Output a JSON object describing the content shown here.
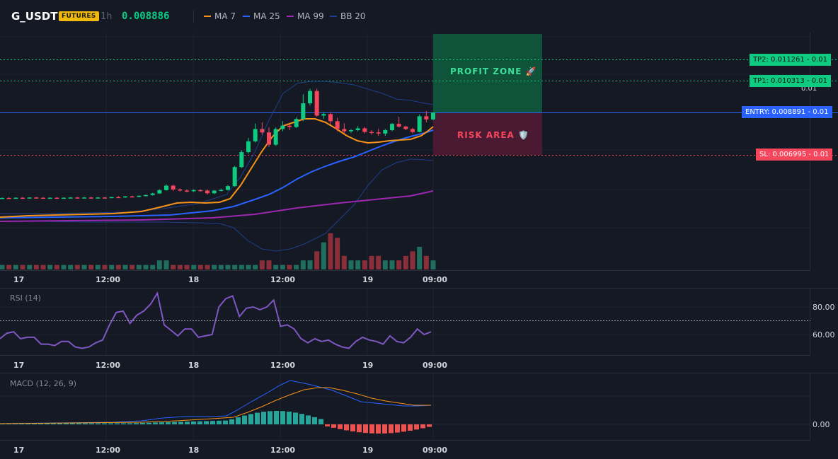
{
  "header": {
    "symbol": "G_USDT",
    "badge": "FUTURES",
    "timeframe": "1h",
    "price": "0.008886",
    "legend": [
      {
        "label": "MA 7",
        "color": "#f7931a"
      },
      {
        "label": "MA 25",
        "color": "#2962ff"
      },
      {
        "label": "MA 99",
        "color": "#9c27b0"
      },
      {
        "label": "BB 20",
        "color": "#1e3f8a"
      }
    ]
  },
  "levels": {
    "tp2": {
      "label": "TP2: 0.011261",
      "value": "0.01",
      "color": "#0ecb81"
    },
    "tp1": {
      "label": "TP1: 0.010313",
      "value": "0.01",
      "color": "#0ecb81"
    },
    "entry": {
      "label": "ENTRY: 0.008891",
      "value": "0.01",
      "color": "#2962ff"
    },
    "sl": {
      "label": "SL: 0.006995",
      "value": "0.01",
      "color": "#f6465d"
    },
    "behind_tp1": "0.01"
  },
  "zones": {
    "profit": "PROFIT ZONE 🚀",
    "risk": "RISK AREA 🛡️"
  },
  "time_axis": [
    "17",
    "12:00",
    "18",
    "12:00",
    "19",
    "09:00"
  ],
  "rsi": {
    "title": "RSI (14)",
    "ticks": [
      "80.00",
      "60.00"
    ],
    "values": [
      57,
      61,
      62,
      57,
      58,
      58,
      53,
      53,
      52,
      55,
      55,
      51,
      50,
      51,
      54,
      56,
      67,
      76,
      77,
      68,
      74,
      77,
      82,
      90,
      67,
      63,
      59,
      64,
      64,
      58,
      59,
      60,
      80,
      86,
      88,
      73,
      79,
      80,
      78,
      80,
      85,
      66,
      67,
      64,
      57,
      54,
      57,
      55,
      56,
      53,
      51,
      50,
      55,
      58,
      56,
      55,
      53,
      59,
      55,
      54,
      58,
      64,
      60,
      62
    ]
  },
  "macd": {
    "title": "MACD (12, 26, 9)",
    "ticks": [
      "0.00"
    ]
  },
  "colors": {
    "background": "#151924",
    "up": "#0ecb81",
    "down": "#f6465d",
    "vol_up": "#1f6e5e",
    "vol_down": "#8a2f3a"
  },
  "chart_data": {
    "type": "candlestick",
    "price_scale_ticks": [
      "0.011261",
      "0.010313",
      "0.008891",
      "0.006995"
    ],
    "candles": [
      [
        0.00505,
        0.00509,
        0.00503,
        0.00507
      ],
      [
        0.00507,
        0.00511,
        0.00504,
        0.00506
      ],
      [
        0.00506,
        0.0051,
        0.00503,
        0.00508
      ],
      [
        0.00508,
        0.00512,
        0.00505,
        0.00507
      ],
      [
        0.00507,
        0.0051,
        0.00504,
        0.00509
      ],
      [
        0.00509,
        0.00512,
        0.00506,
        0.00508
      ],
      [
        0.00508,
        0.00511,
        0.00505,
        0.00507
      ],
      [
        0.00507,
        0.0051,
        0.00504,
        0.00508
      ],
      [
        0.00508,
        0.00511,
        0.00505,
        0.00507
      ],
      [
        0.00507,
        0.0051,
        0.00504,
        0.00508
      ],
      [
        0.00508,
        0.00511,
        0.00506,
        0.00509
      ],
      [
        0.00509,
        0.00512,
        0.00506,
        0.00508
      ],
      [
        0.00508,
        0.00511,
        0.00505,
        0.00509
      ],
      [
        0.00509,
        0.00512,
        0.00506,
        0.00508
      ],
      [
        0.00508,
        0.00511,
        0.00505,
        0.00509
      ],
      [
        0.00509,
        0.00512,
        0.00506,
        0.00508
      ],
      [
        0.00508,
        0.00512,
        0.00506,
        0.00511
      ],
      [
        0.00511,
        0.00515,
        0.00508,
        0.0051
      ],
      [
        0.0051,
        0.00516,
        0.00508,
        0.00514
      ],
      [
        0.00514,
        0.00518,
        0.0051,
        0.00512
      ],
      [
        0.00512,
        0.00518,
        0.0051,
        0.00517
      ],
      [
        0.00517,
        0.00522,
        0.00514,
        0.0052
      ],
      [
        0.0052,
        0.0053,
        0.00518,
        0.00527
      ],
      [
        0.00527,
        0.00545,
        0.00525,
        0.00542
      ],
      [
        0.00542,
        0.00568,
        0.0054,
        0.00562
      ],
      [
        0.00562,
        0.00566,
        0.00538,
        0.00545
      ],
      [
        0.00545,
        0.0055,
        0.00536,
        0.0054
      ],
      [
        0.0054,
        0.00546,
        0.00532,
        0.00538
      ],
      [
        0.00538,
        0.00546,
        0.00534,
        0.00542
      ],
      [
        0.00542,
        0.00546,
        0.00536,
        0.0054
      ],
      [
        0.0054,
        0.00545,
        0.00522,
        0.00528
      ],
      [
        0.00528,
        0.00542,
        0.00524,
        0.0054
      ],
      [
        0.0054,
        0.00548,
        0.00536,
        0.00543
      ],
      [
        0.00543,
        0.00565,
        0.0054,
        0.0056
      ],
      [
        0.0056,
        0.0065,
        0.00556,
        0.00645
      ],
      [
        0.00645,
        0.0072,
        0.0064,
        0.00712
      ],
      [
        0.00712,
        0.00775,
        0.00705,
        0.0076
      ],
      [
        0.0076,
        0.0084,
        0.00755,
        0.00815
      ],
      [
        0.00815,
        0.00845,
        0.0079,
        0.008
      ],
      [
        0.008,
        0.00822,
        0.00735,
        0.00745
      ],
      [
        0.00745,
        0.00822,
        0.0074,
        0.00815
      ],
      [
        0.00815,
        0.0085,
        0.00805,
        0.0083
      ],
      [
        0.0083,
        0.00835,
        0.0081,
        0.00824
      ],
      [
        0.00824,
        0.00868,
        0.0082,
        0.0086
      ],
      [
        0.0086,
        0.0097,
        0.0085,
        0.0093
      ],
      [
        0.0093,
        0.00995,
        0.0092,
        0.00985
      ],
      [
        0.00985,
        0.00995,
        0.0087,
        0.00875
      ],
      [
        0.00875,
        0.0089,
        0.0086,
        0.00882
      ],
      [
        0.00882,
        0.0089,
        0.00835,
        0.0085
      ],
      [
        0.0085,
        0.00865,
        0.00805,
        0.00815
      ],
      [
        0.00815,
        0.0084,
        0.00795,
        0.00805
      ],
      [
        0.00805,
        0.00815,
        0.00798,
        0.0081
      ],
      [
        0.0081,
        0.00828,
        0.00805,
        0.00818
      ],
      [
        0.00818,
        0.00825,
        0.00795,
        0.00802
      ],
      [
        0.00802,
        0.0081,
        0.0079,
        0.008
      ],
      [
        0.008,
        0.00815,
        0.00785,
        0.00795
      ],
      [
        0.00795,
        0.00815,
        0.00785,
        0.0081
      ],
      [
        0.0081,
        0.00842,
        0.00805,
        0.00838
      ],
      [
        0.00838,
        0.0087,
        0.00822,
        0.00826
      ],
      [
        0.00826,
        0.0083,
        0.0081,
        0.00815
      ],
      [
        0.00815,
        0.0082,
        0.00795,
        0.00802
      ],
      [
        0.00802,
        0.0088,
        0.008,
        0.00872
      ],
      [
        0.00872,
        0.00895,
        0.00845,
        0.00858
      ],
      [
        0.00858,
        0.0089,
        0.00855,
        0.00889
      ]
    ],
    "volume": [
      1,
      1,
      1,
      1,
      1,
      1,
      1,
      1,
      1,
      1,
      1,
      1,
      1,
      1,
      1,
      1,
      1,
      1,
      1,
      1,
      1,
      1,
      1,
      2,
      2,
      1,
      1,
      1,
      1,
      1,
      1,
      1,
      1,
      1,
      1,
      1,
      1,
      1,
      2,
      2,
      1,
      1,
      1,
      1,
      2,
      2,
      4,
      6,
      8,
      7,
      3,
      2,
      2,
      2,
      3,
      3,
      2,
      2,
      2,
      3,
      4,
      5,
      3,
      2
    ],
    "volume_scale_max": 10
  }
}
